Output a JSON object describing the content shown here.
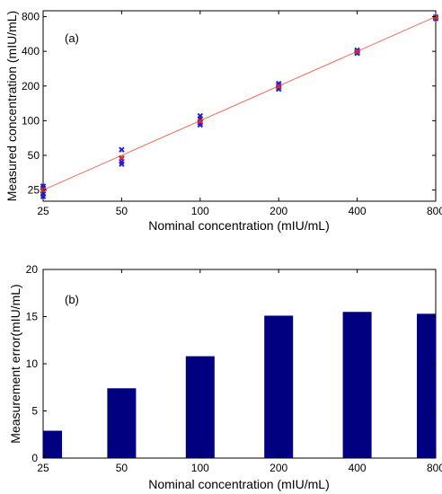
{
  "chart_data": [
    {
      "type": "scatter",
      "panel_label": "(a)",
      "xlabel": "Nominal concentration (mIU/mL)",
      "ylabel": "Measured concentration (mIU/mL)",
      "x_scale": "log",
      "y_scale": "log",
      "xlim": [
        25,
        800
      ],
      "ylim": [
        20,
        900
      ],
      "x_ticks": [
        25,
        50,
        100,
        200,
        400,
        800
      ],
      "x_tick_labels": [
        "25",
        "50",
        "100",
        "200",
        "400",
        "800"
      ],
      "y_ticks": [
        25,
        50,
        100,
        200,
        400,
        800
      ],
      "y_tick_labels": [
        "25",
        "50",
        "100",
        "200",
        "400",
        "800"
      ],
      "measured_color": "#1f1fd6",
      "mean_color": "#e8281e",
      "line_color": "#f06a5a",
      "fit_line": [
        [
          25,
          25
        ],
        [
          800,
          800
        ]
      ],
      "series": [
        {
          "marker": "x",
          "points": [
            [
              25,
              22
            ],
            [
              25,
              23
            ],
            [
              25,
              24.5
            ],
            [
              25,
              26
            ],
            [
              25,
              27
            ],
            [
              50,
              42
            ],
            [
              50,
              44
            ],
            [
              50,
              47
            ],
            [
              50,
              56
            ],
            [
              100,
              92
            ],
            [
              100,
              96
            ],
            [
              100,
              104
            ],
            [
              100,
              110
            ],
            [
              200,
              188
            ],
            [
              200,
              195
            ],
            [
              200,
              203
            ],
            [
              200,
              210
            ],
            [
              400,
              385
            ],
            [
              400,
              392
            ],
            [
              400,
              402
            ],
            [
              400,
              410
            ],
            [
              800,
              770
            ],
            [
              800,
              782
            ],
            [
              800,
              795
            ]
          ]
        },
        {
          "marker": "x",
          "points": [
            [
              25,
              25
            ],
            [
              50,
              47.5
            ],
            [
              100,
              99
            ],
            [
              200,
              198
            ],
            [
              400,
              398
            ],
            [
              800,
              785
            ]
          ]
        }
      ]
    },
    {
      "type": "bar",
      "panel_label": "(b)",
      "categories": [
        "25",
        "50",
        "100",
        "200",
        "400",
        "800"
      ],
      "values": [
        2.9,
        7.4,
        10.8,
        15.1,
        15.5,
        15.3
      ],
      "xlabel": "Nominal concentration (mIU/mL)",
      "ylabel": "Measurement error(mIU/mL)",
      "ylim": [
        0,
        20
      ],
      "y_ticks": [
        0,
        5,
        10,
        15,
        20
      ],
      "bar_color": "#000080"
    }
  ]
}
